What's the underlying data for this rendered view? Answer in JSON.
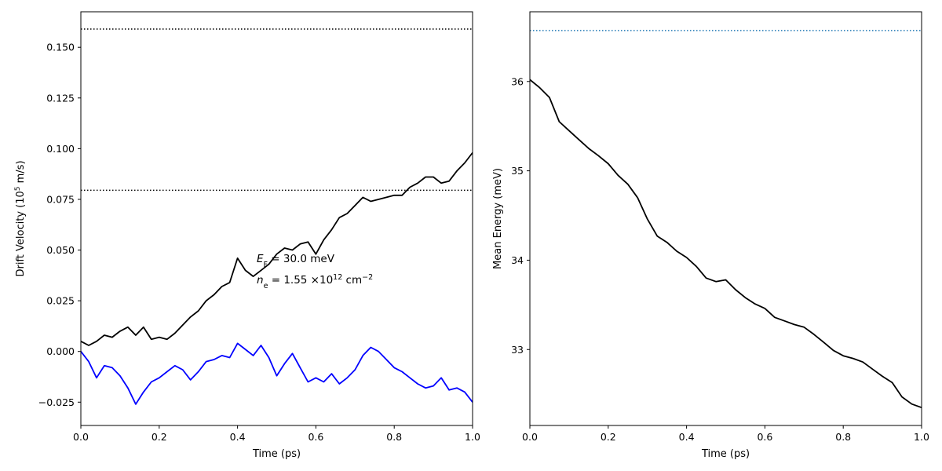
{
  "chart_data": [
    {
      "type": "line",
      "xlabel": "Time (ps)",
      "ylabel_main": "Drift Velocity (10",
      "ylabel_sup": "5",
      "ylabel_tail": " m/s)",
      "xlim": [
        0.0,
        1.0
      ],
      "ylim": [
        -0.0365,
        0.1675
      ],
      "xticks": [
        {
          "value": 0.0,
          "label": "0.0"
        },
        {
          "value": 0.2,
          "label": "0.2"
        },
        {
          "value": 0.4,
          "label": "0.4"
        },
        {
          "value": 0.6,
          "label": "0.6"
        },
        {
          "value": 0.8,
          "label": "0.8"
        },
        {
          "value": 1.0,
          "label": "1.0"
        }
      ],
      "yticks": [
        {
          "value": -0.025,
          "label": "−0.025"
        },
        {
          "value": 0.0,
          "label": "0.000"
        },
        {
          "value": 0.025,
          "label": "0.025"
        },
        {
          "value": 0.05,
          "label": "0.050"
        },
        {
          "value": 0.075,
          "label": "0.075"
        },
        {
          "value": 0.1,
          "label": "0.100"
        },
        {
          "value": 0.125,
          "label": "0.125"
        },
        {
          "value": 0.15,
          "label": "0.150"
        }
      ],
      "hlines": [
        {
          "y": 0.159,
          "color": "#000000",
          "style": "dotted"
        },
        {
          "y": 0.0795,
          "color": "#000000",
          "style": "dotted"
        }
      ],
      "series": [
        {
          "color": "#000000",
          "x": [
            0.0,
            0.02,
            0.04,
            0.06,
            0.08,
            0.1,
            0.12,
            0.14,
            0.16,
            0.18,
            0.2,
            0.22,
            0.24,
            0.26,
            0.28,
            0.3,
            0.32,
            0.34,
            0.36,
            0.38,
            0.4,
            0.42,
            0.44,
            0.46,
            0.48,
            0.5,
            0.52,
            0.54,
            0.56,
            0.58,
            0.6,
            0.62,
            0.64,
            0.66,
            0.68,
            0.7,
            0.72,
            0.74,
            0.76,
            0.78,
            0.8,
            0.82,
            0.84,
            0.86,
            0.88,
            0.9,
            0.92,
            0.94,
            0.96,
            0.98,
            1.0
          ],
          "y": [
            0.005,
            0.003,
            0.005,
            0.008,
            0.007,
            0.01,
            0.012,
            0.008,
            0.012,
            0.006,
            0.007,
            0.006,
            0.009,
            0.013,
            0.017,
            0.02,
            0.025,
            0.028,
            0.032,
            0.034,
            0.046,
            0.04,
            0.037,
            0.04,
            0.043,
            0.048,
            0.051,
            0.05,
            0.053,
            0.054,
            0.048,
            0.055,
            0.06,
            0.066,
            0.068,
            0.072,
            0.076,
            0.074,
            0.075,
            0.076,
            0.077,
            0.077,
            0.081,
            0.083,
            0.086,
            0.086,
            0.083,
            0.084,
            0.089,
            0.093,
            0.098
          ]
        },
        {
          "color": "#0000ff",
          "x": [
            0.0,
            0.02,
            0.04,
            0.06,
            0.08,
            0.1,
            0.12,
            0.14,
            0.16,
            0.18,
            0.2,
            0.22,
            0.24,
            0.26,
            0.28,
            0.3,
            0.32,
            0.34,
            0.36,
            0.38,
            0.4,
            0.42,
            0.44,
            0.46,
            0.48,
            0.5,
            0.52,
            0.54,
            0.56,
            0.58,
            0.6,
            0.62,
            0.64,
            0.66,
            0.68,
            0.7,
            0.72,
            0.74,
            0.76,
            0.78,
            0.8,
            0.82,
            0.84,
            0.86,
            0.88,
            0.9,
            0.92,
            0.94,
            0.96,
            0.98,
            1.0
          ],
          "y": [
            0.0,
            -0.005,
            -0.013,
            -0.007,
            -0.008,
            -0.012,
            -0.018,
            -0.026,
            -0.02,
            -0.015,
            -0.013,
            -0.01,
            -0.007,
            -0.009,
            -0.014,
            -0.01,
            -0.005,
            -0.004,
            -0.002,
            -0.003,
            0.004,
            0.001,
            -0.002,
            0.003,
            -0.003,
            -0.012,
            -0.006,
            -0.001,
            -0.008,
            -0.015,
            -0.013,
            -0.015,
            -0.011,
            -0.016,
            -0.013,
            -0.009,
            -0.002,
            0.002,
            0.0,
            -0.004,
            -0.008,
            -0.01,
            -0.013,
            -0.016,
            -0.018,
            -0.017,
            -0.013,
            -0.019,
            -0.018,
            -0.02,
            -0.025
          ]
        }
      ],
      "annotations": {
        "ef_sym": "E",
        "ef_sub": "F",
        "ef_value": " = 30.0 meV",
        "ne_sym": "n",
        "ne_sub": "e",
        "ne_value": " = 1.55 ×10",
        "ne_exp": "12",
        "ne_unit": " cm",
        "ne_unit_exp": "−2"
      }
    },
    {
      "type": "line",
      "xlabel": "Time (ps)",
      "ylabel": "Mean Energy (meV)",
      "xlim": [
        0.0,
        1.0
      ],
      "ylim": [
        32.15,
        36.78
      ],
      "xticks": [
        {
          "value": 0.0,
          "label": "0.0"
        },
        {
          "value": 0.2,
          "label": "0.2"
        },
        {
          "value": 0.4,
          "label": "0.4"
        },
        {
          "value": 0.6,
          "label": "0.6"
        },
        {
          "value": 0.8,
          "label": "0.8"
        },
        {
          "value": 1.0,
          "label": "1.0"
        }
      ],
      "yticks": [
        {
          "value": 33,
          "label": "33"
        },
        {
          "value": 34,
          "label": "34"
        },
        {
          "value": 35,
          "label": "35"
        },
        {
          "value": 36,
          "label": "36"
        }
      ],
      "hlines": [
        {
          "y": 36.57,
          "color": "#1f77b4",
          "style": "dotted"
        }
      ],
      "series": [
        {
          "color": "#000000",
          "x": [
            0.0,
            0.025,
            0.05,
            0.075,
            0.1,
            0.125,
            0.15,
            0.175,
            0.2,
            0.225,
            0.25,
            0.275,
            0.3,
            0.325,
            0.35,
            0.375,
            0.4,
            0.425,
            0.45,
            0.475,
            0.5,
            0.525,
            0.55,
            0.575,
            0.6,
            0.625,
            0.65,
            0.675,
            0.7,
            0.725,
            0.75,
            0.775,
            0.8,
            0.825,
            0.85,
            0.875,
            0.9,
            0.925,
            0.95,
            0.975,
            1.0
          ],
          "y": [
            36.02,
            35.93,
            35.82,
            35.55,
            35.45,
            35.35,
            35.25,
            35.17,
            35.08,
            34.95,
            34.85,
            34.7,
            34.46,
            34.27,
            34.2,
            34.1,
            34.03,
            33.93,
            33.8,
            33.76,
            33.78,
            33.67,
            33.58,
            33.51,
            33.46,
            33.36,
            33.32,
            33.28,
            33.25,
            33.17,
            33.08,
            32.99,
            32.93,
            32.9,
            32.86,
            32.78,
            32.7,
            32.63,
            32.47,
            32.39,
            32.35
          ]
        }
      ]
    }
  ]
}
